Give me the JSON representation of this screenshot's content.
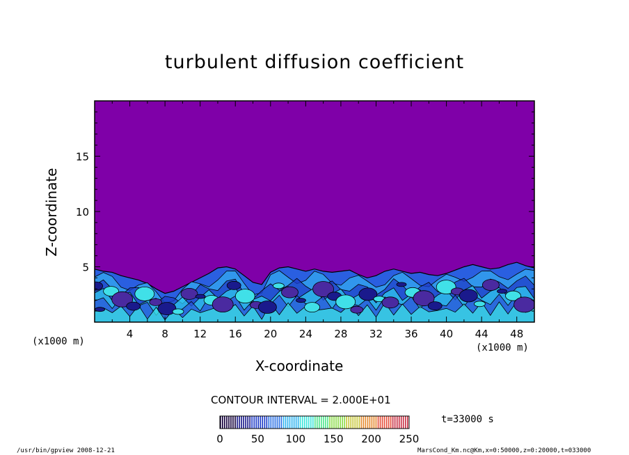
{
  "chart_data": {
    "type": "heatmap",
    "title": "turbulent diffusion coefficient",
    "xlabel": "X-coordinate",
    "ylabel": "Z-coordinate",
    "x_unit": "(x1000 m)",
    "xlim": [
      0,
      50
    ],
    "ylim": [
      0,
      20
    ],
    "x_ticks": [
      4,
      8,
      12,
      16,
      20,
      24,
      28,
      32,
      36,
      40,
      44,
      48
    ],
    "y_ticks": [
      5,
      10,
      15
    ],
    "background_value_color": "#7f00a8",
    "turbulent_layer_top": [
      4.8,
      4.6,
      4.5,
      4.2,
      4.0,
      3.8,
      3.5,
      3.0,
      2.6,
      2.8,
      3.2,
      3.6,
      4.0,
      4.4,
      4.9,
      5.0,
      4.8,
      4.2,
      3.6,
      3.4,
      4.5,
      4.9,
      5.0,
      4.8,
      4.6,
      4.8,
      4.6,
      4.5,
      4.6,
      4.7,
      4.3,
      4.0,
      4.2,
      4.6,
      4.8,
      4.6,
      4.4,
      4.5,
      4.3,
      4.2,
      4.4,
      4.7,
      5.0,
      5.2,
      5.0,
      4.8,
      4.9,
      5.2,
      5.4,
      5.1,
      4.9
    ],
    "contour_interval": "CONTOUR INTERVAL = 2.000E+01",
    "colorbar": {
      "ticks": [
        0,
        50,
        100,
        150,
        200,
        250
      ],
      "range": [
        0,
        250
      ],
      "colors": [
        "#14003c",
        "#1a1a8c",
        "#1f3cc8",
        "#2e73e6",
        "#30b4f0",
        "#3ce6dc",
        "#50e690",
        "#8cdc4a",
        "#c8c83c",
        "#e68c32",
        "#e6503c",
        "#c83246"
      ]
    },
    "time_label": "t=33000 s"
  },
  "footer": {
    "left": "/usr/bin/gpview  2008-12-21",
    "right": "MarsCond_Km.nc@Km,x=0:50000,z=0:20000,t=033000"
  }
}
